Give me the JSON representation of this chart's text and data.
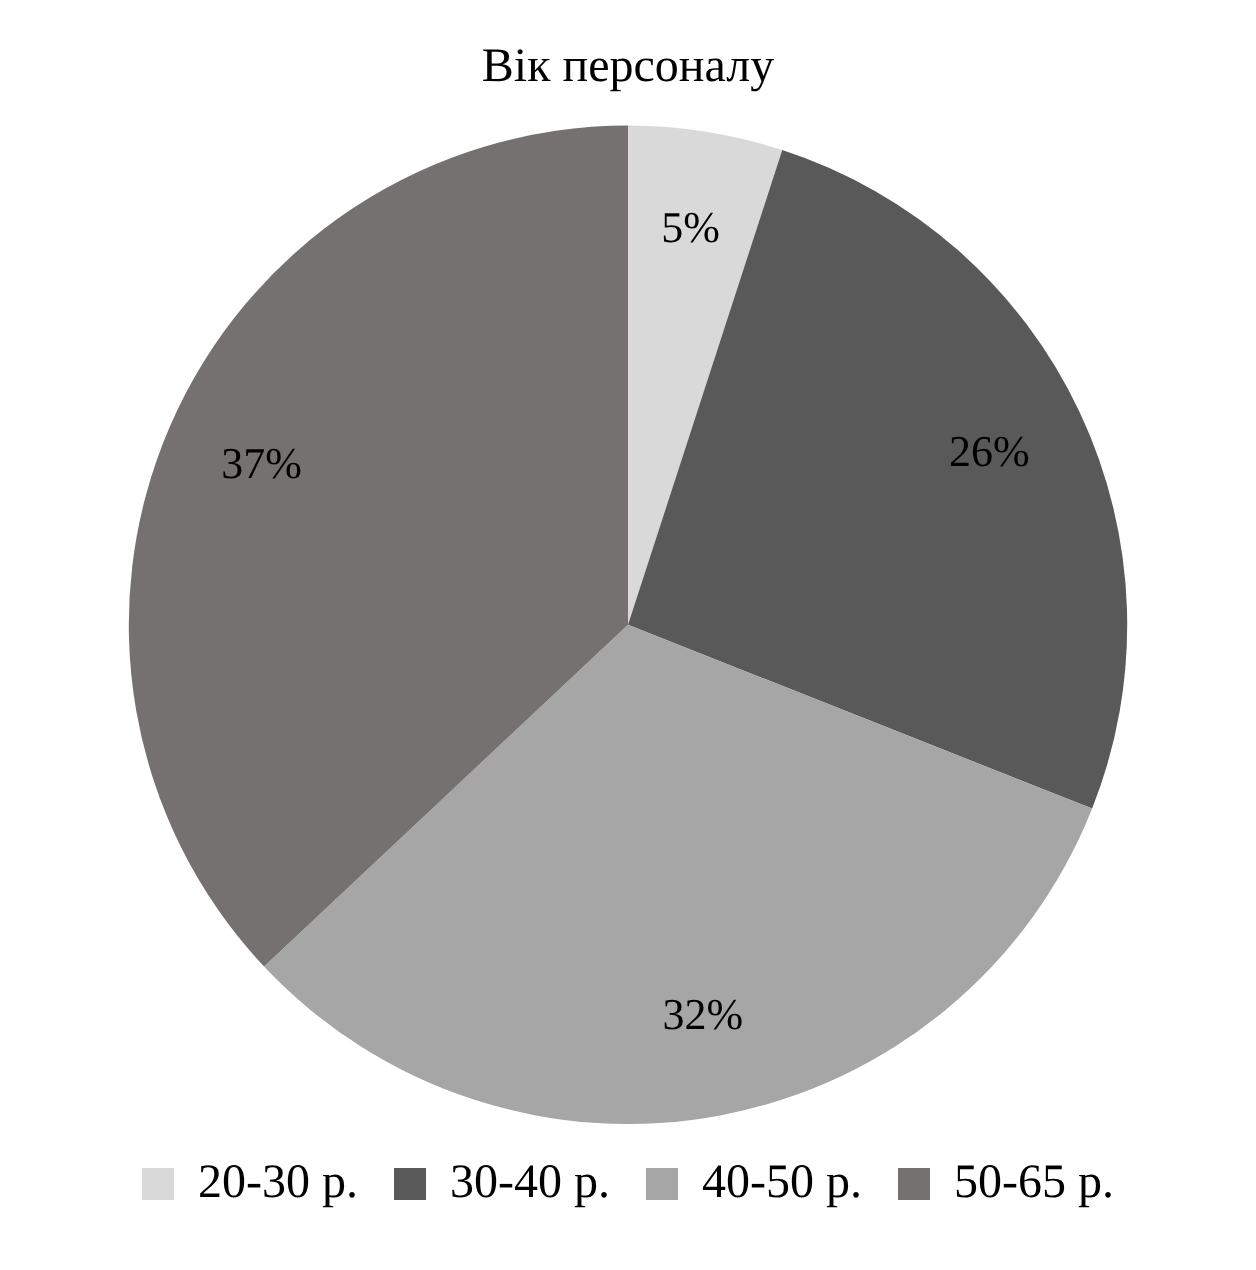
{
  "chart_data": {
    "type": "pie",
    "title": "Вік персоналу",
    "categories": [
      "20-30 р.",
      "30-40 р.",
      "40-50 р.",
      "50-65 р."
    ],
    "values": [
      5,
      26,
      32,
      37
    ],
    "value_labels": [
      "5%",
      "26%",
      "32%",
      "37%"
    ],
    "colors": [
      "#d9d9d9",
      "#595959",
      "#a6a6a6",
      "#767171"
    ],
    "legend": "bottom"
  }
}
